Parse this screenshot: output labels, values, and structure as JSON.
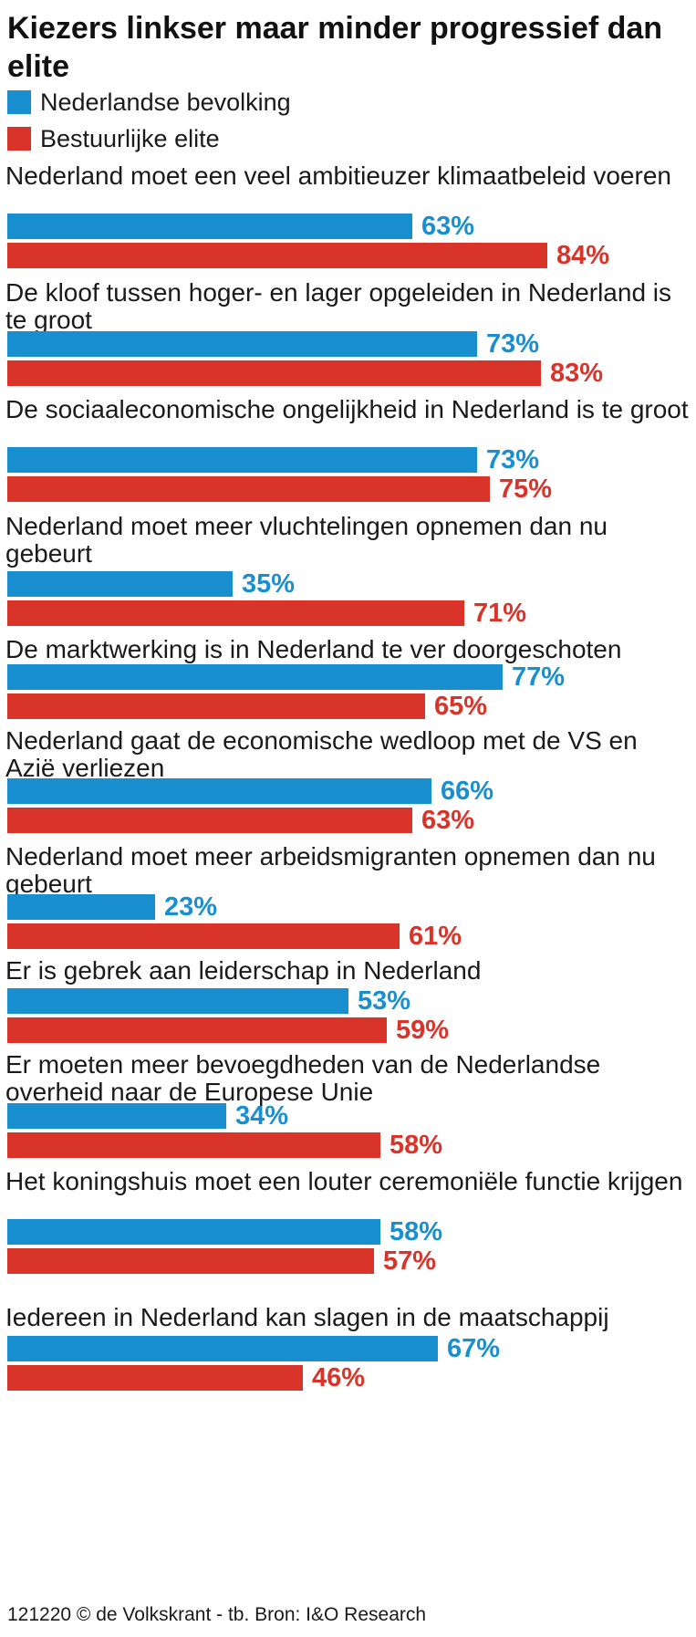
{
  "title": "Kiezers linkser maar minder progressief dan elite",
  "legend": [
    {
      "label": "Nederlandse bevolking",
      "color": "#1a8fd0"
    },
    {
      "label": "Bestuurlijke elite",
      "color": "#d93429"
    }
  ],
  "footer": "121220 © de Volkskrant - tb. Bron: I&O Research",
  "chart_data": {
    "type": "bar",
    "orientation": "horizontal",
    "value_unit": "%",
    "xlim": [
      0,
      100
    ],
    "grid": false,
    "legend_position": "top-left",
    "categories": [
      "Nederland moet een veel ambitieuzer klimaatbeleid voeren",
      "De kloof tussen hoger- en lager opgeleiden in Nederland is te groot",
      "De sociaaleconomische ongelijkheid in Nederland is te groot",
      "Nederland moet meer vluchtelingen opnemen dan nu gebeurt",
      "De marktwerking is in Nederland te ver doorgeschoten",
      "Nederland gaat de economische wedloop met de VS en Azië verliezen",
      "Nederland moet meer arbeidsmigranten opnemen dan nu gebeurt",
      "Er is gebrek aan leiderschap in Nederland",
      "Er moeten meer bevoegdheden van de Nederlandse overheid naar de Europese Unie",
      "Het koningshuis moet een louter ceremoniële functie krijgen",
      "Iedereen in Nederland kan slagen in de maatschappij"
    ],
    "series": [
      {
        "name": "Nederlandse bevolking",
        "color": "#1a8fd0",
        "values": [
          63,
          73,
          73,
          35,
          77,
          66,
          23,
          53,
          34,
          58,
          67
        ]
      },
      {
        "name": "Bestuurlijke elite",
        "color": "#d93429",
        "values": [
          84,
          83,
          75,
          71,
          65,
          63,
          61,
          59,
          58,
          57,
          46
        ]
      }
    ]
  }
}
